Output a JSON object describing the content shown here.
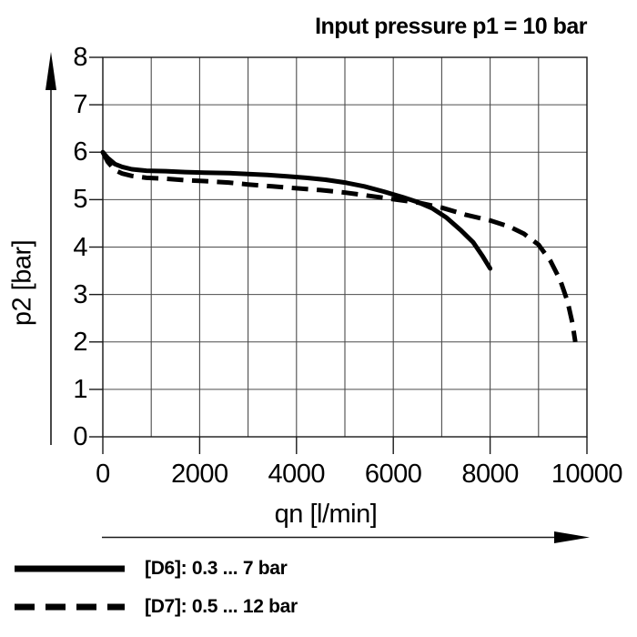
{
  "chart_data": {
    "type": "line",
    "title": "Input pressure p1 = 10 bar",
    "xlabel": "qn [l/min]",
    "ylabel": "p2 [bar]",
    "xlim": [
      0,
      10000
    ],
    "ylim": [
      0,
      8
    ],
    "x_grid_step": 1000,
    "y_grid_step": 1,
    "grid": true,
    "x_ticks": [
      0,
      2000,
      4000,
      6000,
      8000,
      10000
    ],
    "y_ticks": [
      0,
      1,
      2,
      3,
      4,
      5,
      6,
      7,
      8
    ],
    "legend_position": "bottom-left",
    "series": [
      {
        "name": "[D6]: 0.3 ... 7 bar",
        "style": "solid",
        "points": [
          [
            0,
            6.0
          ],
          [
            100,
            5.88
          ],
          [
            250,
            5.75
          ],
          [
            400,
            5.69
          ],
          [
            600,
            5.64
          ],
          [
            900,
            5.61
          ],
          [
            1300,
            5.6
          ],
          [
            1700,
            5.58
          ],
          [
            2100,
            5.57
          ],
          [
            2600,
            5.56
          ],
          [
            3000,
            5.54
          ],
          [
            3400,
            5.52
          ],
          [
            3800,
            5.49
          ],
          [
            4200,
            5.46
          ],
          [
            4600,
            5.42
          ],
          [
            5000,
            5.36
          ],
          [
            5400,
            5.28
          ],
          [
            5800,
            5.17
          ],
          [
            6200,
            5.05
          ],
          [
            6500,
            4.95
          ],
          [
            6800,
            4.82
          ],
          [
            7100,
            4.62
          ],
          [
            7400,
            4.35
          ],
          [
            7650,
            4.1
          ],
          [
            7850,
            3.8
          ],
          [
            8000,
            3.55
          ]
        ]
      },
      {
        "name": "[D7]: 0.5 ... 12 bar",
        "style": "dashed",
        "points": [
          [
            0,
            6.0
          ],
          [
            100,
            5.8
          ],
          [
            250,
            5.62
          ],
          [
            400,
            5.55
          ],
          [
            600,
            5.5
          ],
          [
            900,
            5.46
          ],
          [
            1300,
            5.44
          ],
          [
            1700,
            5.41
          ],
          [
            2100,
            5.39
          ],
          [
            2600,
            5.36
          ],
          [
            3000,
            5.32
          ],
          [
            3500,
            5.28
          ],
          [
            4000,
            5.24
          ],
          [
            4500,
            5.2
          ],
          [
            5000,
            5.15
          ],
          [
            5500,
            5.08
          ],
          [
            6000,
            5.01
          ],
          [
            6500,
            4.94
          ],
          [
            7000,
            4.83
          ],
          [
            7500,
            4.68
          ],
          [
            8000,
            4.56
          ],
          [
            8400,
            4.43
          ],
          [
            8700,
            4.28
          ],
          [
            9000,
            4.05
          ],
          [
            9250,
            3.7
          ],
          [
            9450,
            3.3
          ],
          [
            9600,
            2.85
          ],
          [
            9700,
            2.4
          ],
          [
            9760,
            2.0
          ]
        ]
      }
    ]
  },
  "colors": {
    "background": "#ffffff",
    "curve": "#000000",
    "grid": "#4c4c4c",
    "frame": "#1a1a1a",
    "text": "#000000"
  },
  "layout_labels": {
    "y_axis_arrow": "up-arrow",
    "x_axis_arrow": "right-arrow"
  }
}
